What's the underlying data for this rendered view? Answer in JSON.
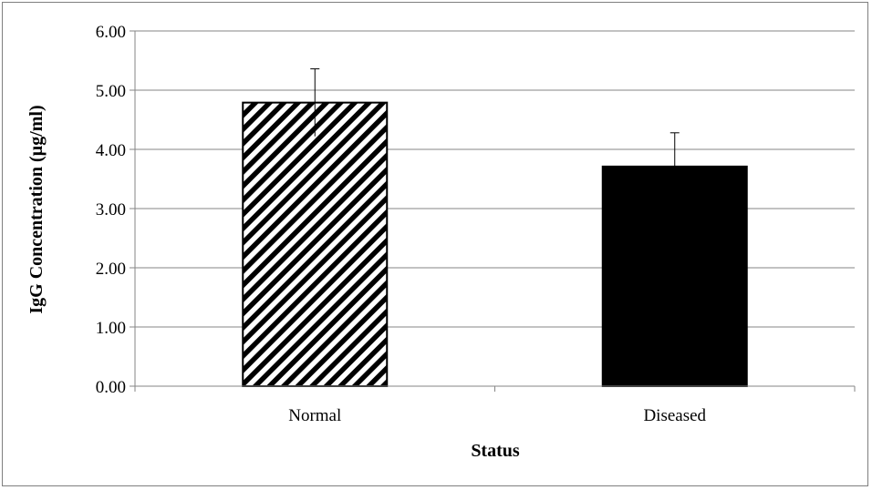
{
  "chart_data": {
    "type": "bar",
    "title": "",
    "xlabel": "Status",
    "ylabel": "IgG Concentration (µg/ml)",
    "categories": [
      "Normal",
      "Diseased"
    ],
    "values": [
      4.79,
      3.71
    ],
    "error": [
      0.57,
      0.57
    ],
    "ylim": [
      0,
      6
    ],
    "yticks": [
      "0.00",
      "1.00",
      "2.00",
      "3.00",
      "4.00",
      "5.00",
      "6.00"
    ],
    "grid": true,
    "legend": "none",
    "bar_styles": [
      "diagonal-hatch",
      "solid"
    ],
    "colors": {
      "bar_fill": "#000000",
      "hatch_bg": "#ffffff",
      "grid": "#868686",
      "axis": "#868686"
    }
  }
}
